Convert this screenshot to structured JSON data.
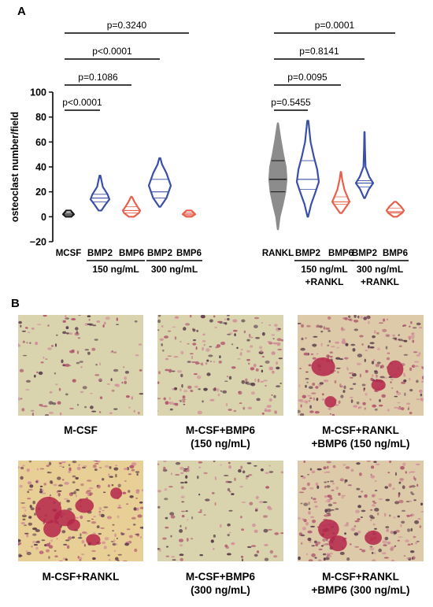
{
  "panel_a_label": "A",
  "panel_b_label": "B",
  "chart_data": {
    "type": "violin",
    "ylabel": "osteoclast number/field",
    "ylim": [
      -20,
      100
    ],
    "y_ticks": [
      -20,
      0,
      20,
      40,
      60,
      80,
      100
    ],
    "categories": [
      "MCSF",
      "BMP2",
      "BMP6",
      "BMP2",
      "BMP6",
      "RANKL",
      "BMP2",
      "BMP6",
      "BMP2",
      "BMP6"
    ],
    "group_labels": [
      {
        "lines": [
          "150 ng/mL"
        ],
        "start": 1,
        "end": 2
      },
      {
        "lines": [
          "300 ng/mL"
        ],
        "start": 3,
        "end": 4
      },
      {
        "lines": [
          "150 ng/mL",
          "+RANKL"
        ],
        "start": 6,
        "end": 7
      },
      {
        "lines": [
          "300 ng/mL",
          "+RANKL"
        ],
        "start": 8,
        "end": 9
      }
    ],
    "colors": {
      "black": "#1a1a1a",
      "blue": "#3a4fa8",
      "red": "#e8604c",
      "gray": "#8c8c8c"
    },
    "series": [
      {
        "category": "MCSF",
        "color": "black",
        "min": 0,
        "max": 5,
        "median": 2,
        "q1": 1,
        "q3": 3,
        "shape": [
          [
            0,
            0.5
          ],
          [
            2,
            1.0
          ],
          [
            5,
            0.4
          ]
        ]
      },
      {
        "category": "BMP2 150 ng/mL",
        "color": "blue",
        "min": 5,
        "max": 33,
        "median": 15,
        "q1": 12,
        "q3": 18,
        "shape": [
          [
            5,
            0.15
          ],
          [
            10,
            0.6
          ],
          [
            14,
            1.0
          ],
          [
            18,
            0.8
          ],
          [
            24,
            0.3
          ],
          [
            33,
            0.05
          ]
        ]
      },
      {
        "category": "BMP6 150 ng/mL",
        "color": "red",
        "min": 0,
        "max": 16,
        "median": 5,
        "q1": 3,
        "q3": 8,
        "shape": [
          [
            0,
            0.3
          ],
          [
            3,
            0.85
          ],
          [
            5,
            1.0
          ],
          [
            8,
            0.7
          ],
          [
            12,
            0.35
          ],
          [
            16,
            0.05
          ]
        ]
      },
      {
        "category": "BMP2 300 ng/mL",
        "color": "blue",
        "min": 8,
        "max": 47,
        "median": 20,
        "q1": 15,
        "q3": 30,
        "shape": [
          [
            8,
            0.05
          ],
          [
            15,
            0.6
          ],
          [
            25,
            1.0
          ],
          [
            35,
            0.6
          ],
          [
            42,
            0.2
          ],
          [
            47,
            0.05
          ]
        ]
      },
      {
        "category": "BMP6 300 ng/mL",
        "color": "red",
        "min": 0,
        "max": 5,
        "median": 2,
        "q1": 1,
        "q3": 3,
        "shape": [
          [
            0,
            0.4
          ],
          [
            2,
            1.0
          ],
          [
            5,
            0.4
          ]
        ]
      },
      {
        "category": "RANKL",
        "color": "gray",
        "min": -10,
        "max": 75,
        "median": 30,
        "q1": 20,
        "q3": 45,
        "shape": [
          [
            -10,
            0.02
          ],
          [
            0,
            0.2
          ],
          [
            10,
            0.55
          ],
          [
            20,
            0.85
          ],
          [
            30,
            1.0
          ],
          [
            40,
            0.9
          ],
          [
            50,
            0.6
          ],
          [
            62,
            0.3
          ],
          [
            75,
            0.02
          ]
        ]
      },
      {
        "category": "BMP2 150 ng/mL +RANKL",
        "color": "blue",
        "min": 0,
        "max": 77,
        "median": 30,
        "q1": 22,
        "q3": 45,
        "shape": [
          [
            0,
            0.03
          ],
          [
            10,
            0.3
          ],
          [
            20,
            0.7
          ],
          [
            28,
            1.0
          ],
          [
            38,
            0.85
          ],
          [
            48,
            0.55
          ],
          [
            60,
            0.25
          ],
          [
            77,
            0.05
          ]
        ]
      },
      {
        "category": "BMP6 150 ng/mL +RANKL",
        "color": "red",
        "min": 3,
        "max": 36,
        "median": 12,
        "q1": 10,
        "q3": 16,
        "shape": [
          [
            3,
            0.1
          ],
          [
            8,
            0.6
          ],
          [
            12,
            1.0
          ],
          [
            16,
            0.75
          ],
          [
            22,
            0.4
          ],
          [
            30,
            0.15
          ],
          [
            36,
            0.03
          ]
        ]
      },
      {
        "category": "BMP2 300 ng/mL +RANKL",
        "color": "blue",
        "min": 15,
        "max": 68,
        "median": 27,
        "q1": 24,
        "q3": 29,
        "shape": [
          [
            15,
            0.05
          ],
          [
            22,
            0.5
          ],
          [
            27,
            1.0
          ],
          [
            32,
            0.55
          ],
          [
            40,
            0.12
          ],
          [
            55,
            0.05
          ],
          [
            68,
            0.02
          ]
        ]
      },
      {
        "category": "BMP6 300 ng/mL +RANKL",
        "color": "red",
        "min": 0,
        "max": 12,
        "median": 4,
        "q1": 3,
        "q3": 7,
        "shape": [
          [
            0,
            0.2
          ],
          [
            3,
            0.8
          ],
          [
            5,
            1.0
          ],
          [
            8,
            0.7
          ],
          [
            12,
            0.1
          ]
        ]
      }
    ],
    "comparisons": [
      {
        "label": "p<0.0001",
        "from": 0,
        "to": 1
      },
      {
        "label": "p=0.1086",
        "from": 0,
        "to": 2
      },
      {
        "label": "p<0.0001",
        "from": 0,
        "to": 3
      },
      {
        "label": "p=0.3240",
        "from": 0,
        "to": 4
      },
      {
        "label": "p=0.5455",
        "from": 5,
        "to": 6
      },
      {
        "label": "p=0.0095",
        "from": 5,
        "to": 7
      },
      {
        "label": "p=0.8141",
        "from": 5,
        "to": 8
      },
      {
        "label": "p=0.0001",
        "from": 5,
        "to": 9
      }
    ]
  },
  "micrographs": [
    {
      "caption": [
        "M-CSF"
      ],
      "density": "sparse",
      "large_cells": 0
    },
    {
      "caption": [
        "M-CSF+BMP6",
        "(150 ng/mL)"
      ],
      "density": "medium",
      "large_cells": 0
    },
    {
      "caption": [
        "M-CSF+RANKL",
        "+BMP6 (150 ng/mL)"
      ],
      "density": "dense",
      "large_cells": 4
    },
    {
      "caption": [
        "M-CSF+RANKL"
      ],
      "density": "dense",
      "large_cells": 7
    },
    {
      "caption": [
        "M-CSF+BMP6",
        "(300 ng/mL)"
      ],
      "density": "sparse",
      "large_cells": 0
    },
    {
      "caption": [
        "M-CSF+RANKL",
        "+BMP6 (300 ng/mL)"
      ],
      "density": "dense",
      "large_cells": 3
    }
  ]
}
